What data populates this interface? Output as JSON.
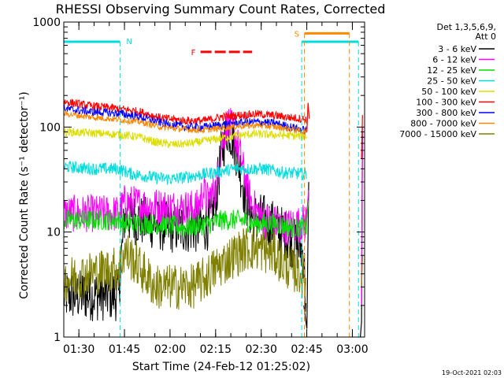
{
  "chart_data": {
    "type": "line",
    "title": "RHESSI Observing Summary Count Rates, Corrected",
    "ylabel": "Corrected Count Rate (s⁻¹ detector⁻¹)",
    "xlabel": "Start Time (24-Feb-12 01:25:02)",
    "timestamp": "19-Oct-2021 02:03",
    "y_scale": "log",
    "ylim": [
      1,
      1000
    ],
    "xlim_minutes": [
      0,
      99
    ],
    "y_ticks": [
      {
        "value": 1,
        "label": "1"
      },
      {
        "value": 10,
        "label": "10"
      },
      {
        "value": 100,
        "label": "100"
      },
      {
        "value": 1000,
        "label": "1000"
      }
    ],
    "x_ticks": [
      {
        "minute": 4.97,
        "label": "01:30"
      },
      {
        "minute": 19.97,
        "label": "01:45"
      },
      {
        "minute": 34.97,
        "label": "02:00"
      },
      {
        "minute": 49.97,
        "label": "02:15"
      },
      {
        "minute": 64.97,
        "label": "02:30"
      },
      {
        "minute": 79.97,
        "label": "02:45"
      },
      {
        "minute": 94.97,
        "label": "03:00"
      }
    ],
    "legend_header": [
      "Det 1,3,5,6,9,",
      "Att 0"
    ],
    "series": [
      {
        "name": "3 - 6 keV",
        "color": "#000000",
        "noise": 0.25,
        "points": [
          [
            0,
            2.5
          ],
          [
            18,
            2.5
          ],
          [
            20,
            14
          ],
          [
            35,
            11
          ],
          [
            45,
            11
          ],
          [
            48,
            12
          ],
          [
            50,
            20
          ],
          [
            52,
            60
          ],
          [
            54,
            100
          ],
          [
            56,
            75
          ],
          [
            58,
            40
          ],
          [
            60,
            20
          ],
          [
            62,
            14
          ],
          [
            66,
            13
          ],
          [
            70,
            11
          ],
          [
            72,
            10
          ],
          [
            75,
            8
          ],
          [
            78,
            7
          ],
          [
            79,
            6
          ],
          [
            79.8,
            1.5
          ]
        ]
      },
      {
        "name": "6 - 12 keV",
        "color": "#ff00ff",
        "noise": 0.18,
        "points": [
          [
            0,
            15
          ],
          [
            18,
            15
          ],
          [
            20,
            19
          ],
          [
            35,
            17
          ],
          [
            44,
            17
          ],
          [
            46,
            25
          ],
          [
            47,
            20
          ],
          [
            50,
            25
          ],
          [
            52,
            70
          ],
          [
            54,
            110
          ],
          [
            56,
            90
          ],
          [
            58,
            55
          ],
          [
            60,
            30
          ],
          [
            62,
            18
          ],
          [
            66,
            13
          ],
          [
            70,
            12
          ],
          [
            72,
            11
          ],
          [
            78,
            12
          ],
          [
            80,
            13
          ]
        ]
      },
      {
        "name": "12 - 25 keV",
        "color": "#00dd00",
        "noise": 0.1,
        "points": [
          [
            0,
            13
          ],
          [
            18,
            13
          ],
          [
            20,
            12
          ],
          [
            30,
            12
          ],
          [
            40,
            11
          ],
          [
            48,
            12
          ],
          [
            52,
            13
          ],
          [
            58,
            13
          ],
          [
            64,
            12
          ],
          [
            70,
            12
          ],
          [
            75,
            11
          ],
          [
            80,
            11
          ]
        ]
      },
      {
        "name": "25 - 50 keV",
        "color": "#00dddd",
        "noise": 0.06,
        "points": [
          [
            0,
            42
          ],
          [
            10,
            40
          ],
          [
            18,
            40
          ],
          [
            22,
            36
          ],
          [
            30,
            33
          ],
          [
            36,
            32
          ],
          [
            42,
            34
          ],
          [
            50,
            37
          ],
          [
            56,
            40
          ],
          [
            60,
            40
          ],
          [
            66,
            40
          ],
          [
            72,
            37
          ],
          [
            78,
            36
          ],
          [
            80,
            36
          ]
        ]
      },
      {
        "name": "50 - 100 keV",
        "color": "#dddd00",
        "noise": 0.04,
        "points": [
          [
            0,
            90
          ],
          [
            8,
            88
          ],
          [
            18,
            85
          ],
          [
            25,
            80
          ],
          [
            30,
            72
          ],
          [
            36,
            68
          ],
          [
            42,
            70
          ],
          [
            48,
            75
          ],
          [
            56,
            82
          ],
          [
            62,
            86
          ],
          [
            70,
            84
          ],
          [
            78,
            82
          ],
          [
            80,
            82
          ]
        ]
      },
      {
        "name": "100 - 300 keV",
        "color": "#ff0000",
        "noise": 0.04,
        "points": [
          [
            0,
            175
          ],
          [
            8,
            160
          ],
          [
            18,
            150
          ],
          [
            25,
            140
          ],
          [
            32,
            122
          ],
          [
            40,
            115
          ],
          [
            46,
            115
          ],
          [
            52,
            125
          ],
          [
            58,
            130
          ],
          [
            64,
            133
          ],
          [
            70,
            128
          ],
          [
            78,
            120
          ],
          [
            80,
            118
          ]
        ]
      },
      {
        "name": "300 - 800 keV",
        "color": "#0000ff",
        "noise": 0.04,
        "points": [
          [
            0,
            150
          ],
          [
            8,
            140
          ],
          [
            18,
            135
          ],
          [
            25,
            125
          ],
          [
            32,
            110
          ],
          [
            40,
            100
          ],
          [
            46,
            100
          ],
          [
            52,
            105
          ],
          [
            58,
            110
          ],
          [
            64,
            112
          ],
          [
            70,
            108
          ],
          [
            78,
            95
          ],
          [
            80,
            92
          ]
        ]
      },
      {
        "name": "800 - 7000 keV",
        "color": "#ff8800",
        "noise": 0.03,
        "points": [
          [
            0,
            135
          ],
          [
            8,
            125
          ],
          [
            18,
            118
          ],
          [
            25,
            112
          ],
          [
            32,
            100
          ],
          [
            40,
            95
          ],
          [
            46,
            93
          ],
          [
            52,
            98
          ],
          [
            58,
            102
          ],
          [
            64,
            104
          ],
          [
            70,
            100
          ],
          [
            78,
            92
          ],
          [
            80,
            88
          ]
        ]
      },
      {
        "name": "7000 - 15000 keV",
        "color": "#808000",
        "noise": 0.22,
        "points": [
          [
            0,
            3.5
          ],
          [
            8,
            4
          ],
          [
            18,
            4.5
          ],
          [
            20,
            6.5
          ],
          [
            24,
            5
          ],
          [
            30,
            3
          ],
          [
            38,
            3
          ],
          [
            42,
            3
          ],
          [
            46,
            3.5
          ],
          [
            50,
            4.5
          ],
          [
            56,
            6
          ],
          [
            60,
            7
          ],
          [
            64,
            7
          ],
          [
            70,
            6
          ],
          [
            72,
            5
          ],
          [
            78,
            4
          ],
          [
            79.8,
            3.5
          ]
        ]
      }
    ],
    "after_gap_spikes": [
      {
        "name": "100 - 300 keV",
        "color": "#ff0000",
        "points": [
          [
            80,
            90
          ],
          [
            80.4,
            170
          ],
          [
            80.8,
            120
          ]
        ]
      },
      {
        "name": "3 - 6 keV",
        "color": "#000000",
        "points": [
          [
            79,
            2
          ],
          [
            80,
            1.2
          ],
          [
            80.6,
            30
          ]
        ]
      },
      {
        "name": "6 - 12 keV",
        "color": "#ff00ff",
        "points": [
          [
            79.2,
            8
          ],
          [
            80.6,
            25
          ]
        ]
      },
      {
        "name": "12 - 25 keV",
        "color": "#00dd00",
        "points": [
          [
            79.5,
            10
          ],
          [
            80.6,
            20
          ]
        ]
      },
      {
        "name": "3 - 6 keV late",
        "color": "#000000",
        "points": [
          [
            97.6,
            1
          ],
          [
            98,
            1.4
          ],
          [
            98.3,
            90
          ]
        ]
      },
      {
        "name": "6 - 12 keV late",
        "color": "#ff00ff",
        "points": [
          [
            98,
            2
          ],
          [
            98.3,
            100
          ]
        ]
      },
      {
        "name": "100 - 300 keV late",
        "color": "#ff0000",
        "points": [
          [
            98,
            50
          ],
          [
            98.3,
            130
          ]
        ]
      },
      {
        "name": "7000 - 15000 keV late",
        "color": "#808000",
        "points": [
          [
            98,
            3
          ],
          [
            98.3,
            6
          ]
        ]
      }
    ],
    "markers": {
      "N_label": "N",
      "S_label": "S",
      "F_label": "F",
      "night_color": "#00dddd",
      "saa_color": "#ff8800",
      "flare_color": "#ff0000",
      "night_segments": [
        [
          0,
          18.5
        ],
        [
          78.3,
          97
        ]
      ],
      "night_level": 650,
      "night_lines": [
        18.5,
        78.3,
        97
      ],
      "saa_segment": [
        79.2,
        94
      ],
      "saa_level": 780,
      "saa_lines": [
        79.2,
        94
      ],
      "flare_segment": [
        45,
        62
      ],
      "flare_level": 520
    }
  }
}
